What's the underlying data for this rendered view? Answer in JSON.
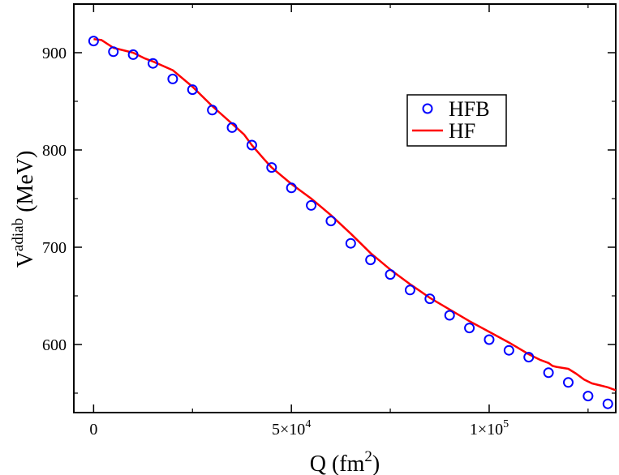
{
  "chart_data": {
    "type": "scatter",
    "title": "",
    "xlabel": {
      "base": "Q (fm",
      "sup": "2",
      "tail": ")"
    },
    "ylabel": {
      "base": "V",
      "sup": "adiab",
      "tail": " (MeV)"
    },
    "xlim": [
      -5000,
      132000
    ],
    "ylim": [
      530,
      950
    ],
    "x_ticks": [
      {
        "value": 0,
        "label": "0",
        "exp": ""
      },
      {
        "value": 50000,
        "label": "5×10",
        "exp": "4"
      },
      {
        "value": 100000,
        "label": "1×10",
        "exp": "5"
      }
    ],
    "x_minor_ticks": [
      25000,
      75000,
      125000
    ],
    "y_ticks": [
      {
        "value": 600,
        "label": "600"
      },
      {
        "value": 700,
        "label": "700"
      },
      {
        "value": 800,
        "label": "800"
      },
      {
        "value": 900,
        "label": "900"
      }
    ],
    "y_minor_ticks": [
      550,
      650,
      750,
      850
    ],
    "grid": false,
    "legend_position": "top-right",
    "series": [
      {
        "name": "HFB",
        "style": "open-circle",
        "color": "#0000ff",
        "x": [
          0,
          5000,
          10000,
          15000,
          20000,
          25000,
          30000,
          35000,
          40000,
          45000,
          50000,
          55000,
          60000,
          65000,
          70000,
          75000,
          80000,
          85000,
          90000,
          95000,
          100000,
          105000,
          110000,
          115000,
          120000,
          125000,
          130000
        ],
        "y": [
          912,
          901,
          898,
          889,
          873,
          862,
          841,
          823,
          805,
          782,
          761,
          743,
          727,
          704,
          687,
          672,
          656,
          647,
          630,
          617,
          605,
          594,
          587,
          571,
          561,
          547,
          539
        ]
      },
      {
        "name": "HF",
        "style": "line",
        "color": "#ff0000",
        "x": [
          0,
          2000,
          5000,
          8000,
          10000,
          13000,
          15000,
          20000,
          25000,
          30000,
          35000,
          38000,
          40000,
          43000,
          45000,
          50000,
          55000,
          60000,
          65000,
          70000,
          75000,
          80000,
          85000,
          90000,
          95000,
          100000,
          105000,
          110000,
          113000,
          115000,
          116000,
          117000,
          120000,
          122000,
          124000,
          126000,
          128000,
          130000,
          132000
        ],
        "y": [
          914,
          913,
          905,
          902,
          900,
          894,
          891,
          882,
          865,
          845,
          827,
          816,
          805,
          791,
          782,
          765,
          750,
          733,
          714,
          694,
          677,
          662,
          648,
          636,
          624,
          613,
          602,
          590,
          584,
          581,
          578,
          577,
          575,
          570,
          564,
          560,
          558,
          556,
          553
        ]
      }
    ]
  }
}
